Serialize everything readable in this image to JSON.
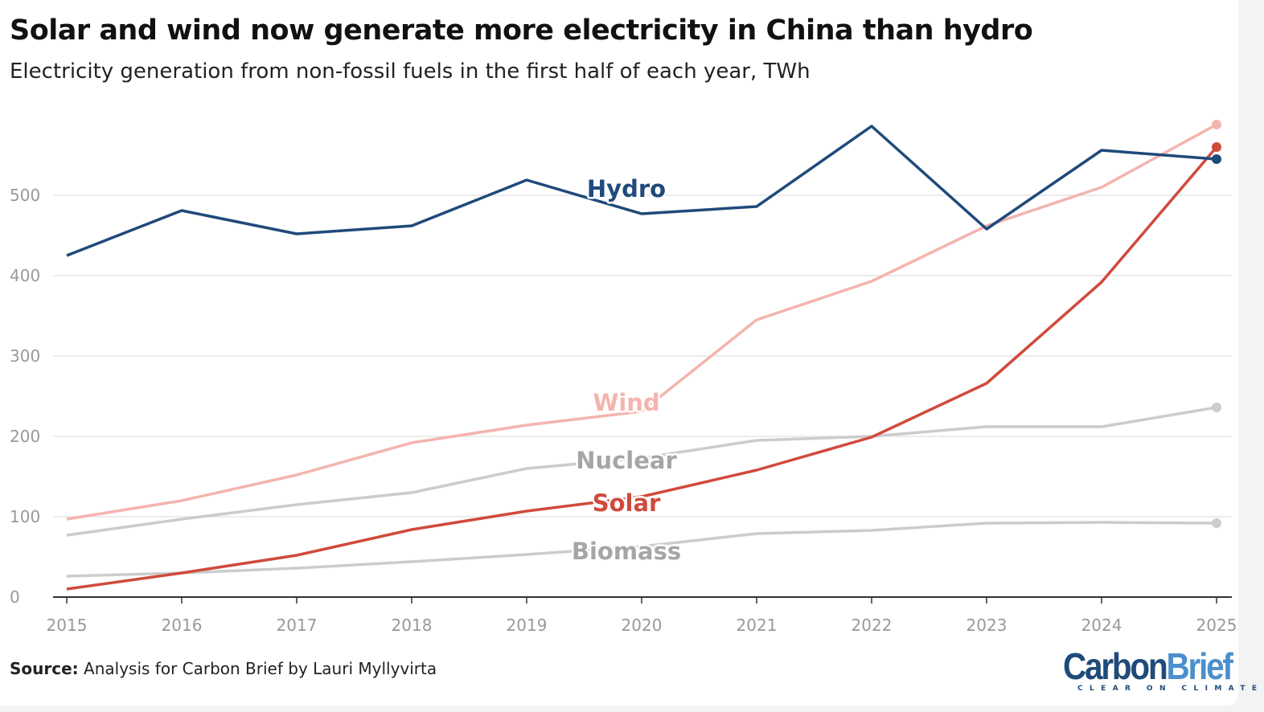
{
  "title": "Solar and wind now generate more electricity in China than hydro",
  "subtitle": "Electricity generation from non-fossil fuels in the first half of each year, TWh",
  "source_label": "Source:",
  "source_text": "Analysis for Carbon Brief by Lauri Myllyvirta",
  "logo": {
    "part1": "Carbon",
    "part2": "Brief",
    "tagline": "CLEAR ON CLIMATE"
  },
  "chart_data": {
    "type": "line",
    "title": "Solar and wind now generate more electricity in China than hydro",
    "ylabel": "TWh",
    "x": [
      2015,
      2016,
      2017,
      2018,
      2019,
      2020,
      2021,
      2022,
      2023,
      2024,
      2025
    ],
    "xticks": [
      "2015",
      "2016",
      "2017",
      "2018",
      "2019",
      "2020",
      "2021",
      "2022",
      "2023",
      "2024",
      "2025"
    ],
    "yticks": [
      "0",
      "100",
      "200",
      "300",
      "400",
      "500"
    ],
    "ylim": [
      0,
      600
    ],
    "grid": true,
    "series": [
      {
        "name": "Hydro",
        "color": "#1f4a7a",
        "values": [
          425,
          481,
          452,
          462,
          519,
          477,
          486,
          586,
          458,
          556,
          545
        ]
      },
      {
        "name": "Wind",
        "color": "#f4b4ae",
        "values": [
          97,
          120,
          152,
          192,
          214,
          231,
          345,
          393,
          462,
          510,
          588
        ]
      },
      {
        "name": "Nuclear",
        "color": "#cccccc",
        "label_color": "#a6a6a6",
        "values": [
          77,
          97,
          115,
          130,
          160,
          173,
          195,
          200,
          212,
          212,
          236
        ]
      },
      {
        "name": "Solar",
        "color": "#d04a3c",
        "values": [
          10,
          30,
          52,
          84,
          107,
          125,
          158,
          199,
          266,
          392,
          560
        ]
      },
      {
        "name": "Biomass",
        "color": "#cccccc",
        "label_color": "#a6a6a6",
        "values": [
          26,
          30,
          36,
          44,
          53,
          63,
          79,
          83,
          92,
          93,
          92
        ]
      }
    ]
  }
}
